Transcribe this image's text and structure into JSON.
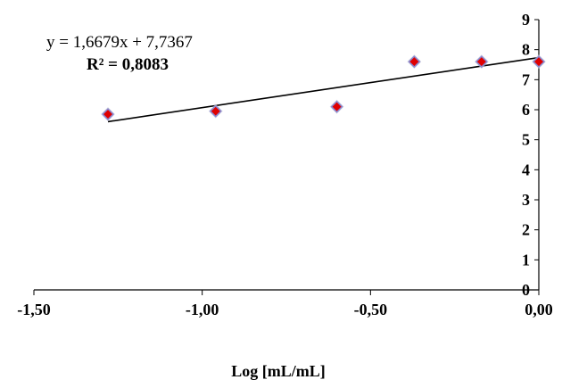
{
  "chart_data": {
    "type": "scatter",
    "title": "",
    "xlabel": "Log [mL/mL]",
    "ylabel": "",
    "xlim": [
      -1.5,
      0
    ],
    "ylim": [
      0,
      9
    ],
    "x_ticks": [
      "-1,50",
      "-1,00",
      "-0,50",
      "0,00"
    ],
    "y_ticks": [
      "0",
      "1",
      "2",
      "3",
      "4",
      "5",
      "6",
      "7",
      "8",
      "9"
    ],
    "grid": false,
    "legend": "none",
    "series": [
      {
        "x": [
          -1.28,
          -0.96,
          -0.6,
          -0.37,
          -0.17,
          0.0
        ],
        "y": [
          5.85,
          5.95,
          6.1,
          7.6,
          7.6,
          7.6
        ],
        "marker": "diamond",
        "color": "#e00000",
        "edge_color": "#8a8ad0"
      }
    ],
    "trendline": {
      "x_range": [
        -1.28,
        0.0
      ],
      "slope": 1.6679,
      "intercept": 7.7367,
      "color": "#000000"
    },
    "annotations": {
      "equation": "y = 1,6679x + 7,7367",
      "r_squared": "R² = 0,8083"
    }
  }
}
